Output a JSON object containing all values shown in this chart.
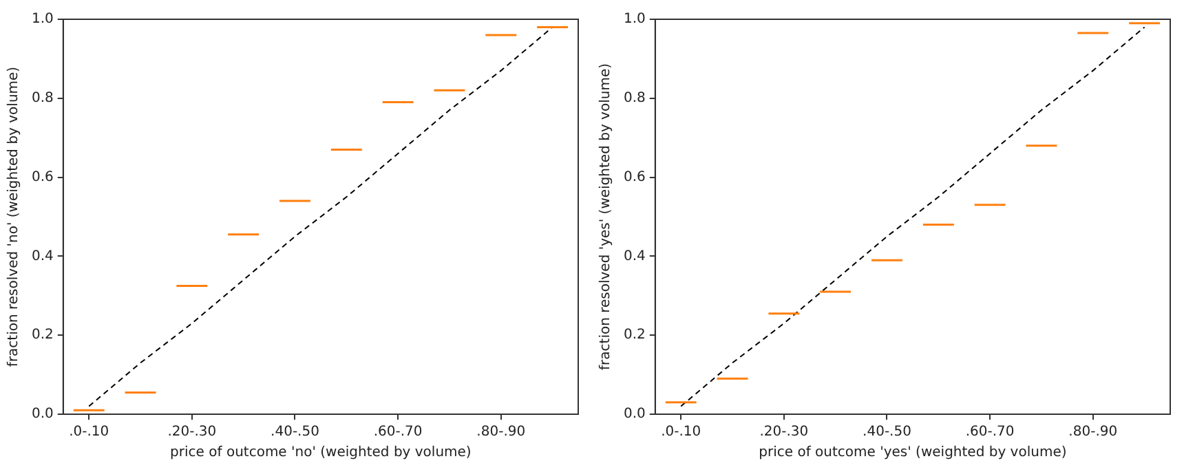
{
  "chart_data": [
    {
      "type": "box",
      "xlabel": "price of outcome 'no' (weighted by volume)",
      "ylabel": "fraction resolved 'no' (weighted by volume)",
      "categories": [
        ".0-.10",
        null,
        ".20-.30",
        null,
        ".40-.50",
        null,
        ".60-.70",
        null,
        ".80-.90",
        null
      ],
      "ylim": [
        0,
        1
      ],
      "yticks": [
        {
          "value": 0,
          "label": "0.0"
        },
        {
          "value": 0.2,
          "label": "0.2"
        },
        {
          "value": 0.4,
          "label": "0.4"
        },
        {
          "value": 0.6,
          "label": "0.6"
        },
        {
          "value": 0.8,
          "label": "0.8"
        },
        {
          "value": 1,
          "label": "1.0"
        }
      ],
      "grid": false,
      "legend": false,
      "series": [
        {
          "type": "box",
          "color": "#ff7f0e",
          "boxes": [
            {
              "low": 0.01,
              "q1": 0.01,
              "median": 0.01,
              "q3": 0.01,
              "high": 0.01
            },
            {
              "low": 0.055,
              "q1": 0.055,
              "median": 0.055,
              "q3": 0.055,
              "high": 0.055
            },
            {
              "low": 0.325,
              "q1": 0.325,
              "median": 0.325,
              "q3": 0.325,
              "high": 0.325
            },
            {
              "low": 0.455,
              "q1": 0.455,
              "median": 0.455,
              "q3": 0.455,
              "high": 0.455
            },
            {
              "low": 0.54,
              "q1": 0.54,
              "median": 0.54,
              "q3": 0.54,
              "high": 0.54
            },
            {
              "low": 0.67,
              "q1": 0.67,
              "median": 0.67,
              "q3": 0.67,
              "high": 0.67
            },
            {
              "low": 0.79,
              "q1": 0.79,
              "median": 0.79,
              "q3": 0.79,
              "high": 0.79
            },
            {
              "low": 0.82,
              "q1": 0.82,
              "median": 0.82,
              "q3": 0.82,
              "high": 0.82
            },
            {
              "low": 0.96,
              "q1": 0.96,
              "median": 0.96,
              "q3": 0.96,
              "high": 0.96
            },
            {
              "low": 0.98,
              "q1": 0.98,
              "median": 0.98,
              "q3": 0.98,
              "high": 0.98
            }
          ]
        },
        {
          "type": "line",
          "color": "#000000",
          "line_style": "dashed",
          "marker": "none",
          "values": [
            0.02,
            0.13,
            0.23,
            0.34,
            0.45,
            0.55,
            0.66,
            0.77,
            0.87,
            0.98
          ]
        }
      ]
    },
    {
      "type": "box",
      "xlabel": "price of outcome 'yes' (weighted by volume)",
      "ylabel": "fraction resolved 'yes' (weighted by volume)",
      "categories": [
        ".0-.10",
        null,
        ".20-.30",
        null,
        ".40-.50",
        null,
        ".60-.70",
        null,
        ".80-.90",
        null
      ],
      "ylim": [
        0,
        1
      ],
      "yticks": [
        {
          "value": 0,
          "label": "0.0"
        },
        {
          "value": 0.2,
          "label": "0.2"
        },
        {
          "value": 0.4,
          "label": "0.4"
        },
        {
          "value": 0.6,
          "label": "0.6"
        },
        {
          "value": 0.8,
          "label": "0.8"
        },
        {
          "value": 1,
          "label": "1.0"
        }
      ],
      "grid": false,
      "legend": false,
      "series": [
        {
          "type": "box",
          "color": "#ff7f0e",
          "boxes": [
            {
              "low": 0.03,
              "q1": 0.03,
              "median": 0.03,
              "q3": 0.03,
              "high": 0.03
            },
            {
              "low": 0.09,
              "q1": 0.09,
              "median": 0.09,
              "q3": 0.09,
              "high": 0.09
            },
            {
              "low": 0.255,
              "q1": 0.255,
              "median": 0.255,
              "q3": 0.255,
              "high": 0.255
            },
            {
              "low": 0.31,
              "q1": 0.31,
              "median": 0.31,
              "q3": 0.31,
              "high": 0.31
            },
            {
              "low": 0.39,
              "q1": 0.39,
              "median": 0.39,
              "q3": 0.39,
              "high": 0.39
            },
            {
              "low": 0.48,
              "q1": 0.48,
              "median": 0.48,
              "q3": 0.48,
              "high": 0.48
            },
            {
              "low": 0.53,
              "q1": 0.53,
              "median": 0.53,
              "q3": 0.53,
              "high": 0.53
            },
            {
              "low": 0.68,
              "q1": 0.68,
              "median": 0.68,
              "q3": 0.68,
              "high": 0.68
            },
            {
              "low": 0.965,
              "q1": 0.965,
              "median": 0.965,
              "q3": 0.965,
              "high": 0.965
            },
            {
              "low": 0.99,
              "q1": 0.99,
              "median": 0.99,
              "q3": 0.99,
              "high": 0.99
            }
          ]
        },
        {
          "type": "line",
          "color": "#000000",
          "line_style": "dashed",
          "marker": "none",
          "values": [
            0.02,
            0.13,
            0.23,
            0.34,
            0.45,
            0.55,
            0.66,
            0.77,
            0.87,
            0.98
          ]
        }
      ]
    }
  ]
}
